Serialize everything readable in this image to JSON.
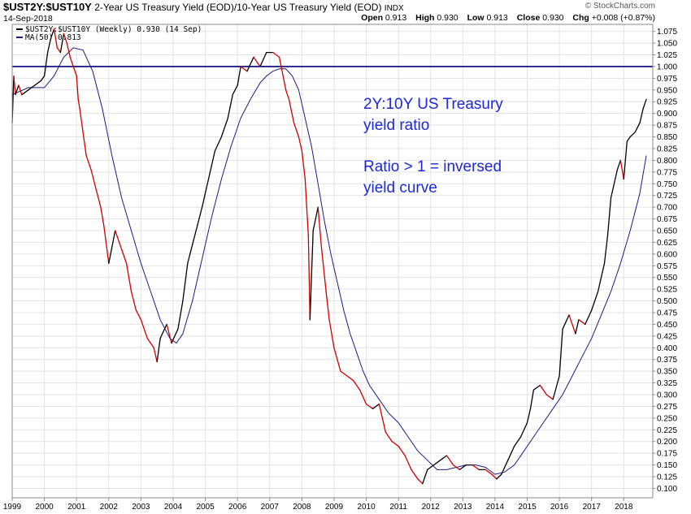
{
  "header": {
    "symbol": "$UST2Y:$UST10Y",
    "description": "2-Year US Treasury Yield (EOD)/10-Year US Treasury Yield (EOD)",
    "exchange": "INDX",
    "brand": "© StockCharts.com",
    "date": "14-Sep-2018",
    "open_label": "Open",
    "open": "0.913",
    "high_label": "High",
    "high": "0.930",
    "low_label": "Low",
    "low": "0.913",
    "close_label": "Close",
    "close": "0.930",
    "chg_label": "Chg",
    "chg": "+0.008 (+0.87%)"
  },
  "legend": {
    "price": "$UST2Y:$UST10Y (Weekly) 0.930 (14 Sep)",
    "ma": "MA(50) 0.813"
  },
  "annotation": {
    "line1": "2Y:10Y US Treasury",
    "line2": "yield ratio",
    "line3": "Ratio > 1 = inversed",
    "line4": "yield curve"
  },
  "colors": {
    "price_up": "#000000",
    "price_down": "#cc0000",
    "ma": "#1a1a80",
    "reference": "#00007a",
    "annotation": "#1a28d6",
    "grid": "#e2e2e2"
  },
  "chart_data": {
    "type": "line",
    "frequency": "weekly",
    "xlim": [
      1999.0,
      2018.75
    ],
    "ylim": [
      0.08,
      1.09
    ],
    "y_ticks": [
      "1.075",
      "1.050",
      "1.025",
      "1.000",
      "0.975",
      "0.950",
      "0.925",
      "0.900",
      "0.875",
      "0.850",
      "0.825",
      "0.800",
      "0.775",
      "0.750",
      "0.725",
      "0.700",
      "0.675",
      "0.650",
      "0.625",
      "0.600",
      "0.575",
      "0.550",
      "0.525",
      "0.500",
      "0.475",
      "0.450",
      "0.425",
      "0.400",
      "0.375",
      "0.350",
      "0.325",
      "0.300",
      "0.275",
      "0.250",
      "0.225",
      "0.200",
      "0.175",
      "0.150",
      "0.125",
      "0.100"
    ],
    "x_ticks": [
      "1999",
      "2000",
      "2001",
      "2002",
      "2003",
      "2004",
      "2005",
      "2006",
      "2007",
      "2008",
      "2009",
      "2010",
      "2011",
      "2012",
      "2013",
      "2014",
      "2015",
      "2016",
      "2017",
      "2018"
    ],
    "reference_line": 1.0,
    "grid": true,
    "legend_position": "top-left",
    "series": [
      {
        "name": "$UST2Y:$UST10Y",
        "x": [
          1999.0,
          1999.05,
          1999.1,
          1999.2,
          1999.3,
          1999.5,
          1999.7,
          1999.9,
          2000.0,
          2000.1,
          2000.2,
          2000.3,
          2000.4,
          2000.5,
          2000.6,
          2000.7,
          2000.8,
          2000.9,
          2001.0,
          2001.05,
          2001.1,
          2001.2,
          2001.3,
          2001.45,
          2001.6,
          2001.75,
          2001.85,
          2002.0,
          2002.2,
          2002.4,
          2002.55,
          2002.7,
          2002.85,
          2003.0,
          2003.2,
          2003.4,
          2003.5,
          2003.6,
          2003.8,
          2003.95,
          2004.15,
          2004.3,
          2004.45,
          2004.6,
          2004.75,
          2004.9,
          2005.1,
          2005.3,
          2005.5,
          2005.7,
          2005.85,
          2006.0,
          2006.1,
          2006.3,
          2006.5,
          2006.7,
          2006.9,
          2007.1,
          2007.3,
          2007.5,
          2007.6,
          2007.75,
          2007.9,
          2008.0,
          2008.1,
          2008.2,
          2008.25,
          2008.35,
          2008.5,
          2008.6,
          2008.75,
          2008.85,
          2009.0,
          2009.2,
          2009.4,
          2009.6,
          2009.8,
          2010.0,
          2010.2,
          2010.4,
          2010.6,
          2010.8,
          2011.0,
          2011.2,
          2011.4,
          2011.6,
          2011.75,
          2011.9,
          2012.1,
          2012.3,
          2012.5,
          2012.7,
          2012.9,
          2013.1,
          2013.3,
          2013.5,
          2013.7,
          2013.9,
          2014.05,
          2014.2,
          2014.4,
          2014.6,
          2014.8,
          2015.0,
          2015.1,
          2015.2,
          2015.4,
          2015.6,
          2015.8,
          2016.0,
          2016.1,
          2016.3,
          2016.5,
          2016.6,
          2016.8,
          2017.0,
          2017.2,
          2017.4,
          2017.5,
          2017.6,
          2017.8,
          2017.9,
          2018.0,
          2018.1,
          2018.2,
          2018.35,
          2018.5,
          2018.6,
          2018.7
        ],
        "values": [
          0.88,
          0.98,
          0.94,
          0.96,
          0.94,
          0.95,
          0.96,
          0.97,
          0.98,
          1.03,
          1.06,
          1.08,
          1.04,
          1.03,
          1.07,
          1.05,
          1.02,
          1.0,
          0.98,
          0.93,
          0.91,
          0.86,
          0.81,
          0.78,
          0.74,
          0.7,
          0.66,
          0.58,
          0.65,
          0.61,
          0.58,
          0.52,
          0.48,
          0.46,
          0.42,
          0.4,
          0.37,
          0.42,
          0.45,
          0.41,
          0.44,
          0.5,
          0.58,
          0.62,
          0.66,
          0.7,
          0.76,
          0.82,
          0.85,
          0.89,
          0.94,
          0.96,
          1.0,
          0.99,
          1.02,
          1.0,
          1.03,
          1.03,
          1.02,
          0.95,
          0.93,
          0.88,
          0.85,
          0.82,
          0.76,
          0.64,
          0.46,
          0.65,
          0.7,
          0.62,
          0.52,
          0.46,
          0.4,
          0.35,
          0.34,
          0.33,
          0.31,
          0.28,
          0.27,
          0.28,
          0.22,
          0.2,
          0.19,
          0.17,
          0.14,
          0.12,
          0.11,
          0.14,
          0.15,
          0.16,
          0.17,
          0.15,
          0.14,
          0.15,
          0.15,
          0.14,
          0.14,
          0.13,
          0.12,
          0.13,
          0.16,
          0.19,
          0.21,
          0.24,
          0.27,
          0.31,
          0.32,
          0.3,
          0.29,
          0.34,
          0.44,
          0.47,
          0.43,
          0.46,
          0.45,
          0.48,
          0.52,
          0.58,
          0.64,
          0.72,
          0.78,
          0.8,
          0.76,
          0.84,
          0.85,
          0.86,
          0.88,
          0.91,
          0.93
        ]
      },
      {
        "name": "MA(50)",
        "x": [
          1999.0,
          1999.5,
          2000.0,
          2000.3,
          2000.6,
          2000.9,
          2001.2,
          2001.5,
          2001.8,
          2002.1,
          2002.4,
          2002.7,
          2003.0,
          2003.3,
          2003.6,
          2003.9,
          2004.1,
          2004.3,
          2004.6,
          2004.9,
          2005.2,
          2005.5,
          2005.8,
          2006.1,
          2006.4,
          2006.7,
          2006.9,
          2007.1,
          2007.3,
          2007.5,
          2007.7,
          2007.9,
          2008.1,
          2008.3,
          2008.5,
          2008.7,
          2008.9,
          2009.1,
          2009.3,
          2009.5,
          2009.7,
          2009.9,
          2010.1,
          2010.4,
          2010.7,
          2011.0,
          2011.3,
          2011.6,
          2011.9,
          2012.2,
          2012.5,
          2012.8,
          2013.1,
          2013.4,
          2013.7,
          2014.0,
          2014.3,
          2014.6,
          2014.9,
          2015.2,
          2015.5,
          2015.8,
          2016.1,
          2016.4,
          2016.7,
          2017.0,
          2017.3,
          2017.6,
          2017.9,
          2018.2,
          2018.5,
          2018.7
        ],
        "values": [
          0.94,
          0.955,
          0.955,
          0.98,
          1.02,
          1.04,
          1.035,
          0.99,
          0.91,
          0.81,
          0.72,
          0.65,
          0.58,
          0.52,
          0.46,
          0.42,
          0.41,
          0.43,
          0.5,
          0.59,
          0.68,
          0.76,
          0.83,
          0.89,
          0.93,
          0.965,
          0.98,
          0.99,
          0.995,
          0.995,
          0.98,
          0.95,
          0.89,
          0.83,
          0.75,
          0.67,
          0.6,
          0.54,
          0.48,
          0.43,
          0.39,
          0.35,
          0.32,
          0.29,
          0.26,
          0.24,
          0.21,
          0.18,
          0.16,
          0.14,
          0.14,
          0.145,
          0.15,
          0.15,
          0.145,
          0.13,
          0.135,
          0.15,
          0.18,
          0.21,
          0.24,
          0.27,
          0.3,
          0.34,
          0.38,
          0.42,
          0.47,
          0.52,
          0.58,
          0.65,
          0.73,
          0.81
        ]
      }
    ]
  }
}
